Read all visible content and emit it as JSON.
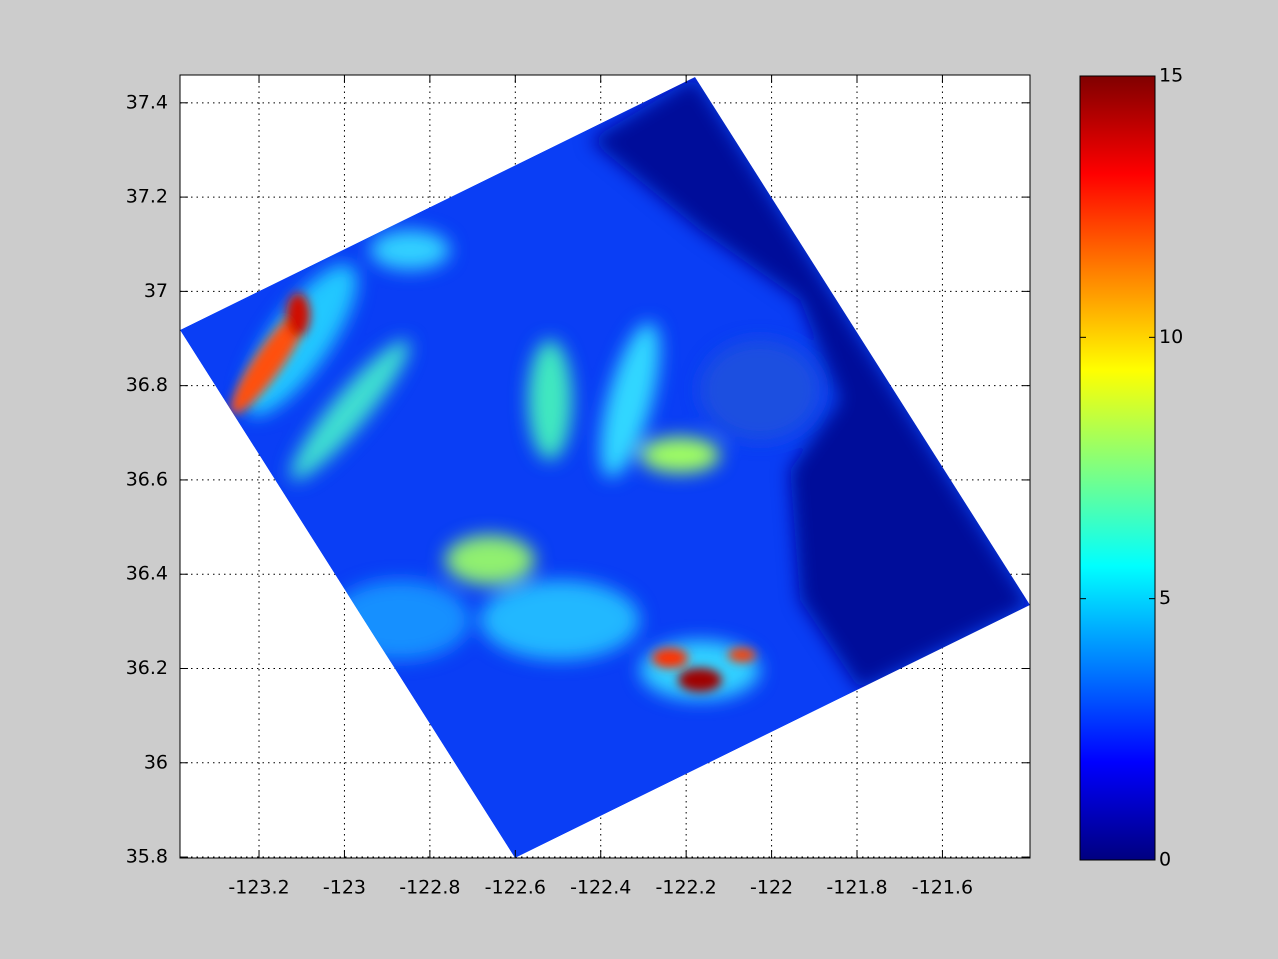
{
  "chart_data": {
    "type": "heatmap",
    "xlim": [
      -123.385,
      -121.395
    ],
    "xticks": [
      -123.2,
      -123,
      -122.8,
      -122.6,
      -122.4,
      -122.2,
      -122,
      -121.8,
      -121.6
    ],
    "ylim": [
      35.798,
      37.459
    ],
    "yticks": [
      35.8,
      36,
      36.2,
      36.4,
      36.6,
      36.8,
      37,
      37.2,
      37.4
    ],
    "grid": true,
    "colormap": "jet",
    "colorbar": {
      "lim": [
        0,
        15
      ],
      "ticks": [
        0,
        5,
        10,
        15
      ]
    }
  }
}
